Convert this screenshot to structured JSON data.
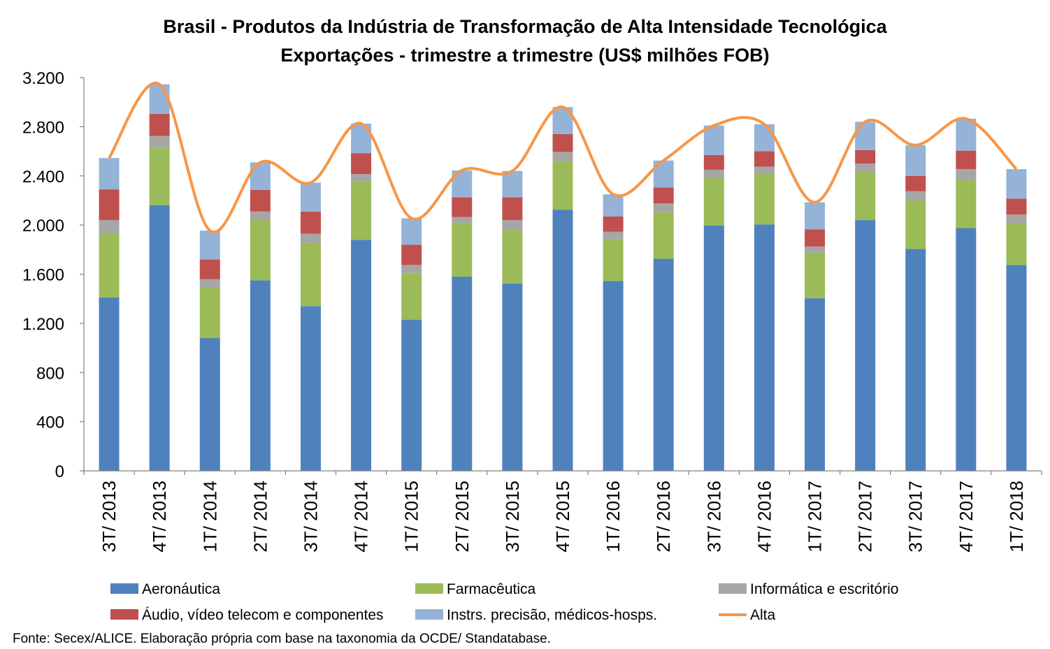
{
  "chart_data": {
    "type": "bar",
    "stacked": true,
    "title": "Brasil - Produtos da Indústria de Transformação de Alta Intensidade Tecnológica",
    "subtitle": "Exportações - trimestre a trimestre (US$ milhões FOB)",
    "source": "Fonte: Secex/ALICE. Elaboração própria com base na taxonomia da OCDE/ Standatabase.",
    "ylim": [
      0,
      3200
    ],
    "yticks": [
      0,
      400,
      800,
      1200,
      1600,
      2000,
      2400,
      2800,
      3200
    ],
    "ytick_labels": [
      "0",
      "400",
      "800",
      "1.200",
      "1.600",
      "2.000",
      "2.400",
      "2.800",
      "3.200"
    ],
    "grid": false,
    "legend_position": "bottom",
    "categories": [
      "3T/ 2013",
      "4T/ 2013",
      "1T/ 2014",
      "2T/ 2014",
      "3T/ 2014",
      "4T/ 2014",
      "1T/ 2015",
      "2T/ 2015",
      "3T/ 2015",
      "4T/ 2015",
      "1T/ 2016",
      "2T/ 2016",
      "3T/ 2016",
      "4T/ 2016",
      "1T/ 2017",
      "2T/ 2017",
      "3T/ 2017",
      "4T/ 2017",
      "1T/ 2018"
    ],
    "series": [
      {
        "name": "Aeronáutica",
        "color": "#4f81bd",
        "values": [
          1410,
          2160,
          1080,
          1550,
          1340,
          1880,
          1230,
          1580,
          1525,
          2125,
          1545,
          1725,
          1995,
          2005,
          1405,
          2040,
          1805,
          1975,
          1675
        ]
      },
      {
        "name": "Farmacêutica",
        "color": "#9bbb59",
        "values": [
          525,
          470,
          415,
          490,
          515,
          475,
          380,
          440,
          435,
          395,
          340,
          380,
          390,
          410,
          370,
          390,
          395,
          390,
          340
        ]
      },
      {
        "name": "Informática e escritório",
        "color": "#a6a6a6",
        "values": [
          105,
          95,
          65,
          70,
          75,
          60,
          65,
          45,
          80,
          75,
          60,
          70,
          65,
          60,
          50,
          70,
          75,
          90,
          70
        ]
      },
      {
        "name": "Áudio, vídeo telecom e componentes",
        "color": "#c0504d",
        "values": [
          250,
          180,
          160,
          175,
          180,
          170,
          165,
          160,
          185,
          145,
          125,
          130,
          120,
          125,
          140,
          110,
          125,
          150,
          130
        ]
      },
      {
        "name": "Instrs. precisão, médicos-hosps.",
        "color": "#95b3d7",
        "values": [
          255,
          240,
          235,
          225,
          235,
          240,
          215,
          220,
          215,
          220,
          180,
          220,
          240,
          220,
          220,
          230,
          250,
          260,
          240
        ]
      }
    ],
    "line_series": {
      "name": "Alta",
      "color": "#f79646",
      "values": [
        2545,
        3145,
        1955,
        2510,
        2345,
        2825,
        2055,
        2445,
        2440,
        2960,
        2250,
        2525,
        2810,
        2820,
        2185,
        2840,
        2650,
        2865,
        2455
      ]
    }
  }
}
